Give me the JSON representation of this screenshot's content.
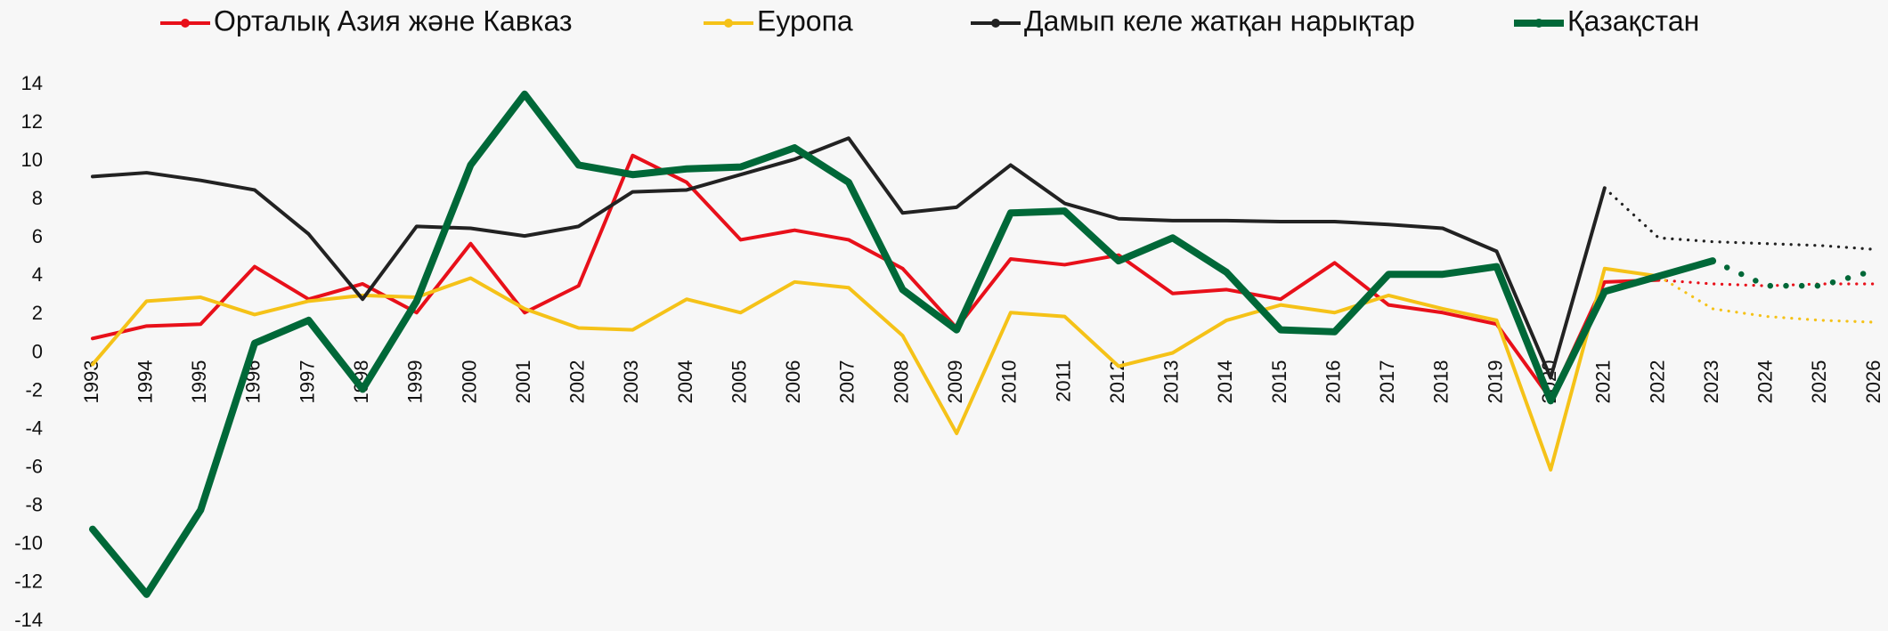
{
  "chart_data": {
    "type": "line",
    "categories": [
      "1993",
      "1994",
      "1995",
      "1996",
      "1997",
      "1998",
      "1999",
      "2000",
      "2001",
      "2002",
      "2003",
      "2004",
      "2005",
      "2006",
      "2007",
      "2008",
      "2009",
      "2010",
      "2011",
      "2012",
      "2013",
      "2014",
      "2015",
      "2016",
      "2017",
      "2018",
      "2019",
      "2020",
      "2021",
      "2022",
      "2023",
      "2024",
      "2025",
      "2026"
    ],
    "series": [
      {
        "name": "Орталық Азия және Кавказ",
        "color": "#e8101a",
        "width": 4,
        "dotted_from": "2022",
        "values": [
          0.75,
          1.4,
          1.5,
          4.5,
          2.8,
          3.6,
          2.1,
          5.7,
          2.1,
          3.5,
          10.3,
          8.9,
          5.9,
          6.4,
          5.9,
          4.4,
          1.3,
          4.9,
          4.6,
          5.1,
          3.1,
          3.3,
          2.8,
          4.7,
          2.5,
          2.1,
          1.5,
          -2.4,
          3.7,
          3.8,
          3.6,
          3.5,
          3.6,
          3.6
        ]
      },
      {
        "name": "Еуропа",
        "color": "#f5c218",
        "width": 4,
        "dotted_from": "2022",
        "values": [
          -0.6,
          2.7,
          2.9,
          2.0,
          2.7,
          3.0,
          2.9,
          3.9,
          2.3,
          1.3,
          1.2,
          2.8,
          2.1,
          3.7,
          3.4,
          0.9,
          -4.2,
          2.1,
          1.9,
          -0.7,
          0.0,
          1.7,
          2.5,
          2.1,
          3.0,
          2.3,
          1.7,
          -6.1,
          4.4,
          4.0,
          2.3,
          1.9,
          1.7,
          1.6
        ]
      },
      {
        "name": "Дамып келе жатқан нарықтар",
        "color": "#222222",
        "width": 4,
        "dotted_from": "2021",
        "values": [
          9.2,
          9.4,
          9.0,
          8.5,
          6.2,
          2.8,
          6.6,
          6.5,
          6.1,
          6.6,
          8.4,
          8.5,
          9.3,
          10.1,
          11.2,
          7.3,
          7.6,
          9.8,
          7.8,
          7.0,
          6.9,
          6.9,
          6.85,
          6.85,
          6.7,
          6.5,
          5.3,
          -1.3,
          8.6,
          6.0,
          5.8,
          5.7,
          5.6,
          5.4
        ]
      },
      {
        "name": "Қазақстан",
        "color": "#006838",
        "width": 8,
        "dotted_from": "2023",
        "values": [
          -9.2,
          -12.6,
          -8.2,
          0.5,
          1.7,
          -1.9,
          2.7,
          9.8,
          13.5,
          9.8,
          9.3,
          9.6,
          9.7,
          10.7,
          8.9,
          3.3,
          1.2,
          7.3,
          7.4,
          4.8,
          6.0,
          4.2,
          1.2,
          1.1,
          4.1,
          4.1,
          4.5,
          -2.5,
          3.2,
          4.0,
          4.8,
          3.5,
          3.5,
          4.3
        ]
      }
    ],
    "ylim": [
      -14,
      14
    ],
    "yticks": [
      -14,
      -12,
      -10,
      -8,
      -6,
      -4,
      -2,
      0,
      2,
      4,
      6,
      8,
      10,
      12,
      14
    ],
    "grid": false
  }
}
